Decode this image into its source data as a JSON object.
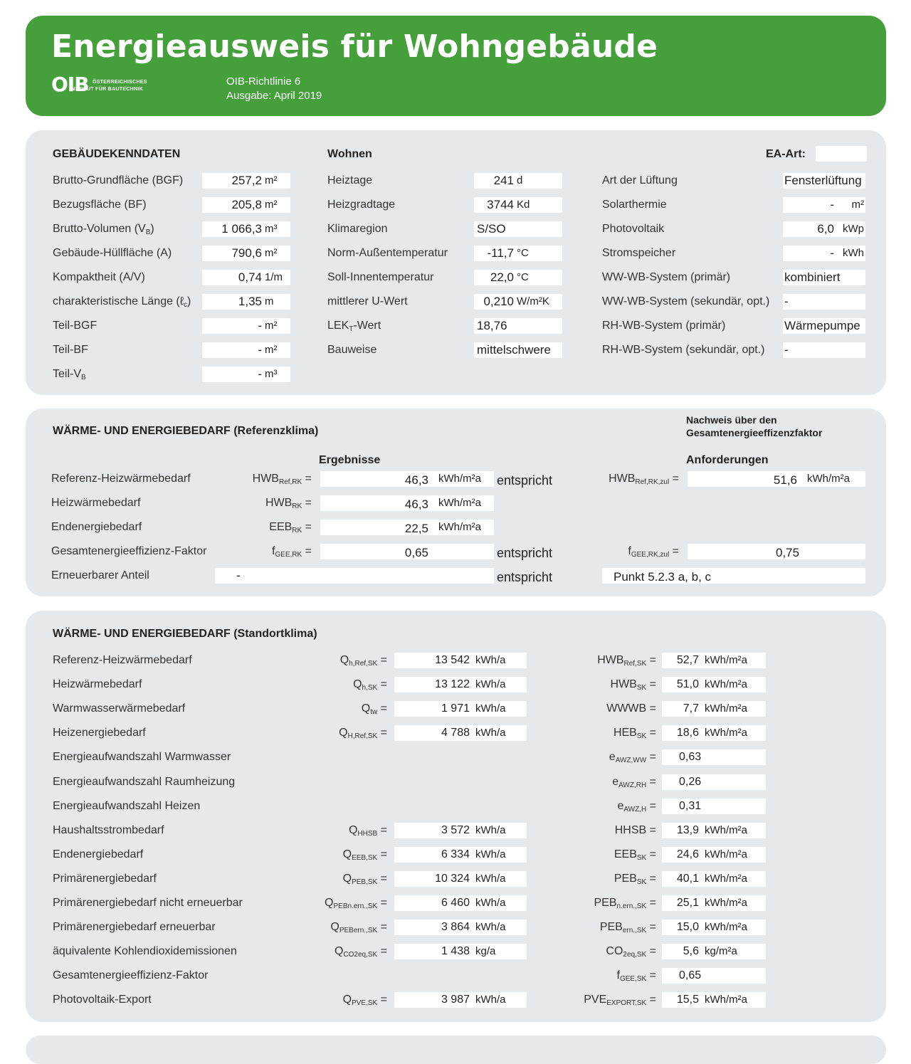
{
  "header": {
    "title": "Energieausweis für Wohngebäude",
    "logo_main": "OIB",
    "logo_line1": "ÖSTERREICHISCHES",
    "logo_line2": "INSTITUT FÜR BAUTECHNIK",
    "richtlinie": "OIB-Richtlinie 6",
    "ausgabe": "Ausgabe: April 2019"
  },
  "gebaeude": {
    "heading": "GEBÄUDEKENNDATEN",
    "usage": "Wohnen",
    "ea_art_label": "EA-Art:",
    "ea_art_value": "",
    "col1": [
      {
        "label": "Brutto-Grundfläche (BGF)",
        "value": "257,2",
        "unit": "m²"
      },
      {
        "label": "Bezugsfläche (BF)",
        "value": "205,8",
        "unit": "m²"
      },
      {
        "label": "Brutto-Volumen (V",
        "sub": "B",
        "label_end": ")",
        "value": "1 066,3",
        "unit": "m³"
      },
      {
        "label": "Gebäude-Hüllfläche (A)",
        "value": "790,6",
        "unit": "m²"
      },
      {
        "label": "Kompaktheit (A/V)",
        "value": "0,74",
        "unit": "1/m"
      },
      {
        "label": "charakteristische Länge (ℓ",
        "sub": "c",
        "label_end": ")",
        "value": "1,35",
        "unit": "m"
      },
      {
        "label": "Teil-BGF",
        "value": "-",
        "unit": "m²"
      },
      {
        "label": "Teil-BF",
        "value": "-",
        "unit": "m²"
      },
      {
        "label": "Teil-V",
        "sub": "B",
        "label_end": "",
        "value": "-",
        "unit": "m³"
      }
    ],
    "col2": [
      {
        "label": "Heiztage",
        "sub": "",
        "label_end": "",
        "value": "241",
        "unit": "d"
      },
      {
        "label": "Heizgradtage",
        "sub": "",
        "label_end": "",
        "value": "3744",
        "unit": "Kd"
      },
      {
        "label": "Klimaregion",
        "sub": "",
        "label_end": "",
        "value": "S/SO",
        "unit": ""
      },
      {
        "label": "Norm-Außentemperatur",
        "sub": "",
        "label_end": "",
        "value": "-11,7",
        "unit": "°C"
      },
      {
        "label": "Soll-Innentemperatur",
        "sub": "",
        "label_end": "",
        "value": "22,0",
        "unit": "°C"
      },
      {
        "label": "mittlerer U-Wert",
        "sub": "",
        "label_end": "",
        "value": "0,210",
        "unit": "W/m²K"
      },
      {
        "label": "LEK",
        "sub": "T",
        "label_end": "-Wert",
        "value": "18,76",
        "unit": ""
      },
      {
        "label": "Bauweise",
        "sub": "",
        "label_end": "",
        "value": "mittelschwere",
        "unit": ""
      }
    ],
    "col3": [
      {
        "label": "Art der Lüftung",
        "value": "Fensterlüftung",
        "unit": ""
      },
      {
        "label": "Solarthermie",
        "value": "-",
        "unit": "m²"
      },
      {
        "label": "Photovoltaik",
        "value": "6,0",
        "unit": "kWp"
      },
      {
        "label": "Stromspeicher",
        "value": "-",
        "unit": "kWh"
      },
      {
        "label": "WW-WB-System (primär)",
        "value": "kombiniert",
        "unit": ""
      },
      {
        "label": "WW-WB-System (sekundär, opt.)",
        "value": "-",
        "unit": ""
      },
      {
        "label": "RH-WB-System (primär)",
        "value": "Wärmepumpe",
        "unit": ""
      },
      {
        "label": "RH-WB-System (sekundär, opt.)",
        "value": "-",
        "unit": ""
      }
    ]
  },
  "referenz": {
    "heading": "WÄRME- UND ENERGIEBEDARF (Referenzklima)",
    "nachweis_l1": "Nachweis über den",
    "nachweis_l2": "Gesamtenergieeffizenzfaktor",
    "ergebnisse": "Ergebnisse",
    "anforderungen": "Anforderungen",
    "rows": [
      {
        "label": "Referenz-Heizwärmebedarf",
        "sym": "HWB",
        "sub": "Ref,RK",
        "value": "46,3",
        "unit": "kWh/m²a",
        "ent": "entspricht",
        "req_sym": "HWB",
        "req_sub": "Ref,RK,zul",
        "req_value": "51,6",
        "req_unit": "kWh/m²a"
      },
      {
        "label": "Heizwärmebedarf",
        "sym": "HWB",
        "sub": "RK",
        "value": "46,3",
        "unit": "kWh/m²a"
      },
      {
        "label": "Endenergiebedarf",
        "sym": "EEB",
        "sub": "RK",
        "value": "22,5",
        "unit": "kWh/m²a"
      },
      {
        "label": "Gesamtenergieeffizienz-Faktor",
        "sym": "f",
        "sub": "GEE,RK",
        "value": "0,65",
        "unit": "",
        "ent": "entspricht",
        "req_sym": "f",
        "req_sub": "GEE,RK,zul",
        "req_value": "0,75",
        "req_unit": ""
      },
      {
        "label": "Erneuerbarer Anteil",
        "value": "-",
        "ent": "entspricht",
        "req_value": "Punkt 5.2.3 a, b, c"
      }
    ]
  },
  "standort": {
    "heading": "WÄRME- UND ENERGIEBEDARF (Standortklima)",
    "rows": [
      {
        "label": "Referenz-Heizwärmebedarf",
        "q": "Q",
        "qs": "h,Ref,SK",
        "qv": "13 542",
        "qu": "kWh/a",
        "k": "HWB",
        "ks": "Ref,SK",
        "kv": "52,7",
        "ku": "kWh/m²a"
      },
      {
        "label": "Heizwärmebedarf",
        "q": "Q",
        "qs": "h,SK",
        "qv": "13 122",
        "qu": "kWh/a",
        "k": "HWB",
        "ks": "SK",
        "kv": "51,0",
        "ku": "kWh/m²a"
      },
      {
        "label": "Warmwasserwärmebedarf",
        "q": "Q",
        "qs": "tw",
        "qv": "1 971",
        "qu": "kWh/a",
        "k": "WWWB",
        "ks": "",
        "kv": "7,7",
        "ku": "kWh/m²a"
      },
      {
        "label": "Heizenergiebedarf",
        "q": "Q",
        "qs": "H,Ref,SK",
        "qv": "4 788",
        "qu": "kWh/a",
        "k": "HEB",
        "ks": "SK",
        "kv": "18,6",
        "ku": "kWh/m²a"
      },
      {
        "label": "Energieaufwandszahl Warmwasser",
        "k": "e",
        "ks": "AWZ,WW",
        "kv": "0,63",
        "ku": ""
      },
      {
        "label": "Energieaufwandszahl Raumheizung",
        "k": "e",
        "ks": "AWZ,RH",
        "kv": "0,26",
        "ku": ""
      },
      {
        "label": "Energieaufwandszahl Heizen",
        "k": "e",
        "ks": "AWZ,H",
        "kv": "0,31",
        "ku": ""
      },
      {
        "label": "Haushaltsstrombedarf",
        "q": "Q",
        "qs": "HHSB",
        "qv": "3 572",
        "qu": "kWh/a",
        "k": "HHSB",
        "ks": "",
        "kv": "13,9",
        "ku": "kWh/m²a"
      },
      {
        "label": "Endenergiebedarf",
        "q": "Q",
        "qs": "EEB,SK",
        "qv": "6 334",
        "qu": "kWh/a",
        "k": "EEB",
        "ks": "SK",
        "kv": "24,6",
        "ku": "kWh/m²a"
      },
      {
        "label": "Primärenergiebedarf",
        "q": "Q",
        "qs": "PEB,SK",
        "qv": "10 324",
        "qu": "kWh/a",
        "k": "PEB",
        "ks": "SK",
        "kv": "40,1",
        "ku": "kWh/m²a"
      },
      {
        "label": "Primärenergiebedarf nicht erneuerbar",
        "q": "Q",
        "qs": "PEBn.ern.,SK",
        "qv": "6 460",
        "qu": "kWh/a",
        "k": "PEB",
        "ks": "n.ern.,SK",
        "kv": "25,1",
        "ku": "kWh/m²a"
      },
      {
        "label": "Primärenergiebedarf erneuerbar",
        "q": "Q",
        "qs": "PEBern.,SK",
        "qv": "3 864",
        "qu": "kWh/a",
        "k": "PEB",
        "ks": "ern.,SK",
        "kv": "15,0",
        "ku": "kWh/m²a"
      },
      {
        "label": "äquivalente Kohlendioxidemissionen",
        "q": "Q",
        "qs": "CO2eq,SK",
        "qv": "1 438",
        "qu": "kg/a",
        "k": "CO",
        "ks": "2eq,SK",
        "kv": "5,6",
        "ku": "kg/m²a"
      },
      {
        "label": "Gesamtenergieeffizienz-Faktor",
        "k": "f",
        "ks": "GEE,SK",
        "kv": "0,65",
        "ku": ""
      },
      {
        "label": "Photovoltaik-Export",
        "q": "Q",
        "qs": "PVE,SK",
        "qv": "3 987",
        "qu": "kWh/a",
        "k": "PVE",
        "ks": "EXPORT,SK",
        "kv": "15,5",
        "ku": "kWh/m²a"
      }
    ]
  }
}
